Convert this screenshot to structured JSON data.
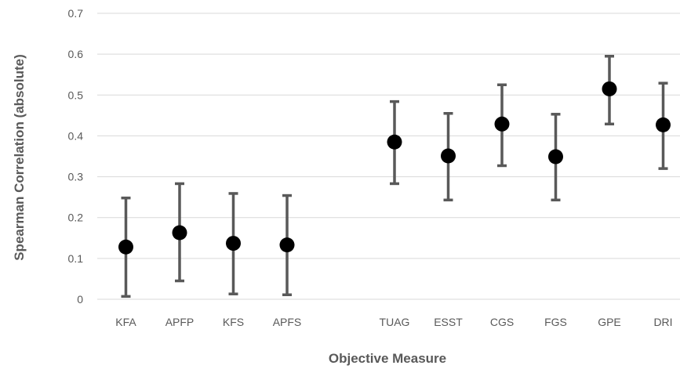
{
  "chart_data": {
    "type": "scatter",
    "title": "",
    "xlabel": "Objective Measure",
    "ylabel": "Spearman Correlation (absolute)",
    "ylim": [
      0,
      0.7
    ],
    "y_ticks": [
      "0",
      "0.1",
      "0.2",
      "0.3",
      "0.4",
      "0.5",
      "0.6",
      "0.7"
    ],
    "grid": true,
    "legend": "none",
    "categories": [
      "KFA",
      "APFP",
      "KFS",
      "APFS",
      "",
      "TUAG",
      "ESST",
      "CGS",
      "FGS",
      "GPE",
      "DRI"
    ],
    "series": [
      {
        "values": [
          0.128,
          0.163,
          0.137,
          0.133,
          null,
          0.385,
          0.351,
          0.429,
          0.349,
          0.515,
          0.427
        ],
        "lower": [
          0.007,
          0.045,
          0.013,
          0.011,
          null,
          0.283,
          0.243,
          0.327,
          0.243,
          0.429,
          0.32
        ],
        "upper": [
          0.248,
          0.283,
          0.259,
          0.254,
          null,
          0.484,
          0.455,
          0.525,
          0.453,
          0.595,
          0.529
        ]
      }
    ],
    "colors": {
      "marker": "#000000",
      "errorbar": "#595959",
      "grid": "#d9d9d9",
      "text": "#595959"
    }
  }
}
